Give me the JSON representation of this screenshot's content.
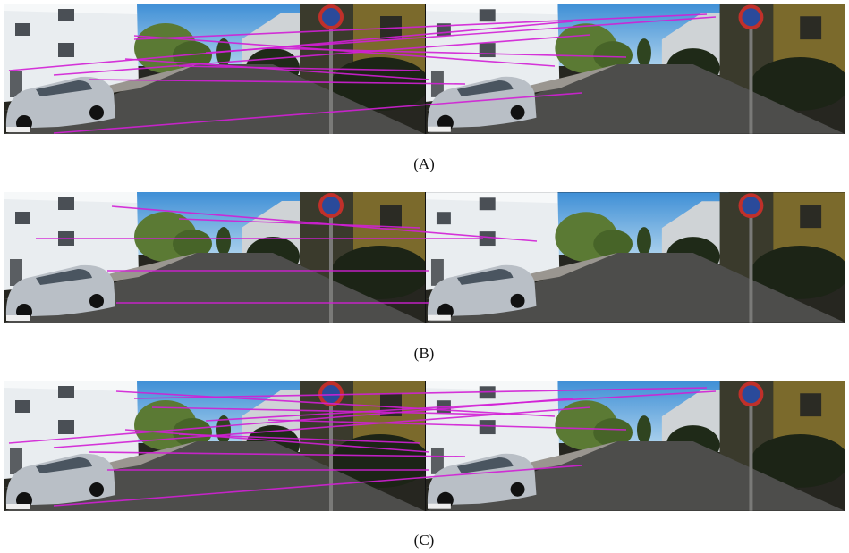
{
  "figure": {
    "panels": [
      {
        "caption": "(A)"
      },
      {
        "caption": "(B)"
      },
      {
        "caption": "(C)"
      }
    ]
  }
}
